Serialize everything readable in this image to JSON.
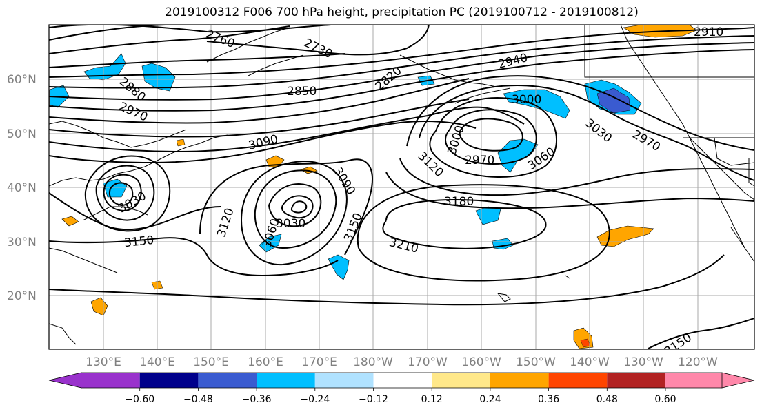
{
  "title": "2019100312 F006 700 hPa height, precipitation PC (2019100712 - 2019100812)",
  "map": {
    "lat_labels": [
      "60°N",
      "50°N",
      "40°N",
      "30°N",
      "20°N"
    ],
    "lon_labels": [
      "130°E",
      "140°E",
      "150°E",
      "160°E",
      "170°E",
      "180°W",
      "170°W",
      "160°W",
      "150°W",
      "140°W",
      "130°W",
      "120°W"
    ],
    "contour_labels": [
      {
        "text": "2760"
      },
      {
        "text": "2730"
      },
      {
        "text": "2820"
      },
      {
        "text": "2910"
      },
      {
        "text": "2940"
      },
      {
        "text": "2880"
      },
      {
        "text": "2850"
      },
      {
        "text": "2970"
      },
      {
        "text": "3000"
      },
      {
        "text": "3090"
      },
      {
        "text": "3000"
      },
      {
        "text": "2970"
      },
      {
        "text": "3060"
      },
      {
        "text": "3030"
      },
      {
        "text": "2970"
      },
      {
        "text": "3120"
      },
      {
        "text": "3090"
      },
      {
        "text": "3120"
      },
      {
        "text": "3060"
      },
      {
        "text": "3030"
      },
      {
        "text": "3150"
      },
      {
        "text": "3180"
      },
      {
        "text": "3210"
      },
      {
        "text": "3150"
      },
      {
        "text": "3030"
      },
      {
        "text": "3150"
      }
    ]
  },
  "colorbar": {
    "ticks": [
      "−0.60",
      "−0.48",
      "−0.36",
      "−0.24",
      "−0.12",
      "0.12",
      "0.24",
      "0.36",
      "0.48",
      "0.60"
    ],
    "colors": [
      "#9932cc",
      "#00008b",
      "#3a5bd0",
      "#00bfff",
      "#b0e2ff",
      "#ffffff",
      "#ffe88a",
      "#ffa500",
      "#ff4500",
      "#b22222",
      "#ff88aa"
    ]
  }
}
